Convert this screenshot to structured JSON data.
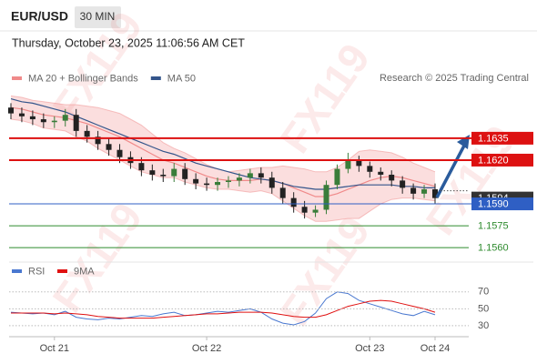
{
  "chart_data": {
    "type": "candlestick",
    "title": "EUR/USD",
    "timeframe": "30 MIN",
    "timestamp": "Thursday, October 23, 2025 11:06:56 AM CET",
    "credit": "Research © 2025 Trading Central",
    "watermark": "FX119",
    "categories": [
      null,
      null,
      null,
      null,
      "Oct 21",
      null,
      null,
      null,
      null,
      null,
      null,
      null,
      null,
      null,
      null,
      null,
      null,
      null,
      "Oct 22",
      null,
      null,
      null,
      null,
      null,
      null,
      null,
      null,
      null,
      null,
      null,
      null,
      null,
      null,
      "Oct 23",
      null,
      null,
      null,
      null,
      null,
      "Oct 24"
    ],
    "open": [
      1.1656,
      1.1652,
      1.165,
      1.1648,
      1.1646,
      1.1647,
      1.1651,
      1.164,
      1.1636,
      1.1631,
      1.1627,
      1.1622,
      1.1618,
      1.1613,
      1.161,
      1.1609,
      1.1614,
      1.1607,
      1.1604,
      1.1603,
      1.1605,
      1.1606,
      1.1608,
      1.1611,
      1.1608,
      1.1601,
      1.1594,
      1.1588,
      1.1584,
      1.1586,
      1.1603,
      1.1614,
      1.162,
      1.1616,
      1.1612,
      1.161,
      1.1606,
      1.1601,
      1.1597,
      1.16
    ],
    "high": [
      1.1659,
      1.1656,
      1.1654,
      1.1652,
      1.165,
      1.1655,
      1.1655,
      1.1644,
      1.164,
      1.1635,
      1.1631,
      1.1626,
      1.1622,
      1.1617,
      1.1614,
      1.1618,
      1.1618,
      1.1611,
      1.1608,
      1.1608,
      1.1609,
      1.1611,
      1.1614,
      1.1615,
      1.1612,
      1.1605,
      1.1598,
      1.1592,
      1.1589,
      1.1606,
      1.1617,
      1.1625,
      1.1623,
      1.1619,
      1.1615,
      1.1613,
      1.1609,
      1.1604,
      1.1603,
      1.1604
    ],
    "low": [
      1.1648,
      1.1646,
      1.1644,
      1.1642,
      1.1642,
      1.1643,
      1.1636,
      1.1632,
      1.1627,
      1.1623,
      1.1618,
      1.1614,
      1.1609,
      1.1606,
      1.1605,
      1.1605,
      1.1603,
      1.16,
      1.1599,
      1.1599,
      1.1601,
      1.1602,
      1.1604,
      1.1604,
      1.1597,
      1.159,
      1.1584,
      1.158,
      1.1581,
      1.1583,
      1.16,
      1.1611,
      1.1612,
      1.1608,
      1.1606,
      1.1602,
      1.1597,
      1.1593,
      1.1594,
      1.159
    ],
    "close": [
      1.1652,
      1.165,
      1.1648,
      1.1646,
      1.1647,
      1.1651,
      1.164,
      1.1636,
      1.1631,
      1.1627,
      1.1622,
      1.1618,
      1.1613,
      1.161,
      1.1609,
      1.1614,
      1.1607,
      1.1604,
      1.1603,
      1.1605,
      1.1606,
      1.1608,
      1.1611,
      1.1608,
      1.1601,
      1.1594,
      1.1588,
      1.1584,
      1.1586,
      1.1603,
      1.1614,
      1.162,
      1.1616,
      1.1612,
      1.161,
      1.1606,
      1.1601,
      1.1597,
      1.16,
      1.1594
    ],
    "up_color": "#3a7d3a",
    "down_color": "#222222",
    "ylim": [
      1.1552,
      1.1658
    ],
    "overlays": [
      {
        "name": "MA 20 + Bollinger Bands",
        "color": "#f08a8a",
        "values": [
          1.1656,
          1.1655,
          1.1653,
          1.1651,
          1.165,
          1.1649,
          1.1647,
          1.1645,
          1.1642,
          1.1639,
          1.1636,
          1.1632,
          1.1628,
          1.1624,
          1.162,
          1.1618,
          1.1615,
          1.1612,
          1.1609,
          1.1607,
          1.1606,
          1.1606,
          1.1606,
          1.1607,
          1.1606,
          1.1604,
          1.1601,
          1.1598,
          1.1595,
          1.1595,
          1.1597,
          1.16,
          1.1603,
          1.1606,
          1.1608,
          1.1609,
          1.1608,
          1.1606,
          1.1604,
          1.1602
        ],
        "upper": [
          1.1664,
          1.1663,
          1.1661,
          1.166,
          1.1659,
          1.1658,
          1.1658,
          1.1657,
          1.1656,
          1.1654,
          1.1652,
          1.1648,
          1.1644,
          1.1638,
          1.1632,
          1.1628,
          1.1625,
          1.1621,
          1.1617,
          1.1614,
          1.1612,
          1.1613,
          1.1614,
          1.1615,
          1.1615,
          1.1616,
          1.1615,
          1.1614,
          1.1612,
          1.1612,
          1.1615,
          1.162,
          1.1626,
          1.1627,
          1.1626,
          1.1625,
          1.1622,
          1.1618,
          1.1615,
          1.1612
        ],
        "lower": [
          1.1648,
          1.1647,
          1.1645,
          1.1642,
          1.1641,
          1.164,
          1.1636,
          1.1633,
          1.1628,
          1.1624,
          1.162,
          1.1616,
          1.1612,
          1.161,
          1.1608,
          1.1608,
          1.1605,
          1.1603,
          1.1601,
          1.16,
          1.16,
          1.1599,
          1.1598,
          1.1599,
          1.1597,
          1.1592,
          1.1587,
          1.1582,
          1.1578,
          1.1578,
          1.1579,
          1.158,
          1.158,
          1.1585,
          1.159,
          1.1593,
          1.1594,
          1.1594,
          1.1593,
          1.1592
        ]
      },
      {
        "name": "MA 50",
        "color": "#34558b",
        "values": [
          1.1662,
          1.166,
          1.1659,
          1.1657,
          1.1655,
          1.1653,
          1.165,
          1.1647,
          1.1644,
          1.1641,
          1.1638,
          1.1635,
          1.1632,
          1.1629,
          1.1626,
          1.1624,
          1.1621,
          1.1618,
          1.1616,
          1.1614,
          1.1612,
          1.161,
          1.1608,
          1.1607,
          1.1606,
          1.1604,
          1.1602,
          1.1601,
          1.16,
          1.16,
          1.1601,
          1.1602,
          1.1603,
          1.1603,
          1.1603,
          1.1603,
          1.1602,
          1.1602,
          1.1601,
          1.1601
        ]
      }
    ],
    "levels": [
      {
        "value": 1.1635,
        "label": "1.1635",
        "color": "#dd1111",
        "boxed": true
      },
      {
        "value": 1.162,
        "label": "1.1620",
        "color": "#dd1111",
        "boxed": true
      },
      {
        "value": 1.159,
        "label": "1.1590",
        "color": "#2f5fc4",
        "boxed": true
      },
      {
        "value": 1.1575,
        "label": "1.1575",
        "color": "#2e8b2e",
        "boxed": false
      },
      {
        "value": 1.156,
        "label": "1.1560",
        "color": "#2e8b2e",
        "boxed": false
      }
    ],
    "current_price": {
      "value": 1.1594,
      "label": "1.1594",
      "color": "#333333"
    },
    "indicator": {
      "type": "line",
      "ylim": [
        17,
        87
      ],
      "yticks": [
        30,
        50,
        70
      ],
      "series": [
        {
          "name": "RSI",
          "color": "#4a78d0",
          "values": [
            46,
            45,
            44,
            45,
            43,
            47,
            40,
            38,
            37,
            39,
            38,
            40,
            42,
            41,
            44,
            46,
            42,
            43,
            45,
            47,
            46,
            48,
            50,
            46,
            38,
            33,
            31,
            35,
            45,
            62,
            70,
            68,
            60,
            56,
            52,
            48,
            44,
            42,
            47,
            43
          ]
        },
        {
          "name": "9MA",
          "color": "#e01010",
          "values": [
            45,
            45,
            45,
            45,
            44,
            45,
            44,
            43,
            41,
            40,
            39,
            39,
            39,
            39,
            40,
            41,
            42,
            43,
            44,
            44,
            45,
            46,
            46,
            46,
            45,
            43,
            41,
            40,
            40,
            43,
            48,
            53,
            56,
            59,
            60,
            59,
            56,
            53,
            50,
            46
          ]
        }
      ]
    }
  }
}
